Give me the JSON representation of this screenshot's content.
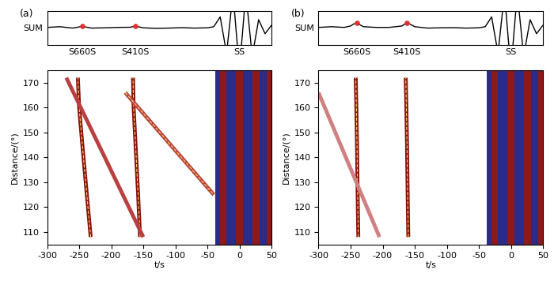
{
  "chart_data": [
    {
      "type": "seismic_section",
      "panel_label": "(a)",
      "sum_trace": {
        "ylabel": "SUM",
        "t": [
          -300,
          -280,
          -260,
          -250,
          -245,
          -240,
          -230,
          -210,
          -190,
          -170,
          -165,
          -162,
          -158,
          -150,
          -130,
          -110,
          -90,
          -70,
          -50,
          -40,
          -30,
          -20,
          -10,
          0,
          10,
          20,
          30,
          40,
          50
        ],
        "values": [
          0.05,
          0.1,
          0.0,
          0.08,
          0.15,
          0.08,
          0.0,
          0.02,
          0.05,
          0.06,
          0.12,
          0.15,
          0.1,
          0.02,
          -0.02,
          0.0,
          0.03,
          0.0,
          0.02,
          0.1,
          0.8,
          -1.8,
          2.5,
          -3,
          2.5,
          -2,
          0.6,
          -0.4,
          0.2
        ],
        "ylim": [
          -1.2,
          1.2
        ],
        "xticks": [
          {
            "value": -245,
            "label": "S660S"
          },
          {
            "value": -162,
            "label": "S410S"
          },
          {
            "value": 0,
            "label": "SS"
          }
        ],
        "picks": {
          "t": [
            -245,
            -162
          ],
          "values": [
            0.15,
            0.15
          ],
          "color": "#e03030"
        }
      },
      "xlabel": "t/s",
      "ylabel": "Distance/(°)",
      "xlim": [
        -300,
        50
      ],
      "xticks": [
        -300,
        -250,
        -200,
        -150,
        -100,
        -50,
        0,
        50
      ],
      "ylim": [
        105,
        175
      ],
      "yticks": [
        110,
        120,
        130,
        140,
        150,
        160,
        170
      ],
      "bands": [
        {
          "t": [
            -38,
            -30
          ],
          "color": "#2b2b8c"
        },
        {
          "t": [
            -30,
            -20
          ],
          "color": "#8b1a1a"
        },
        {
          "t": [
            -20,
            -5
          ],
          "color": "#2b2b8c"
        },
        {
          "t": [
            -5,
            5
          ],
          "color": "#8b1a1a"
        },
        {
          "t": [
            5,
            20
          ],
          "color": "#2b2b8c"
        },
        {
          "t": [
            20,
            32
          ],
          "color": "#8b1a1a"
        },
        {
          "t": [
            32,
            42
          ],
          "color": "#2b2b8c"
        },
        {
          "t": [
            42,
            50
          ],
          "color": "#8b1a1a"
        }
      ],
      "phases": [
        {
          "t": [
            -232,
            -238,
            -245,
            -250,
            -252
          ],
          "distance": [
            108,
            125,
            145,
            160,
            172
          ],
          "color": "#8b1010",
          "marker": "picked"
        },
        {
          "t": [
            -155,
            -158,
            -162,
            -165,
            -166
          ],
          "distance": [
            108,
            125,
            145,
            160,
            172
          ],
          "color": "#8b1010",
          "marker": "picked"
        },
        {
          "t": [
            -270,
            -150
          ],
          "distance": [
            172,
            108
          ],
          "color": "#b84040",
          "marker": "none"
        },
        {
          "t": [
            -178,
            -40
          ],
          "distance": [
            166,
            125
          ],
          "color": "#b84040",
          "marker": "picked"
        }
      ]
    },
    {
      "type": "seismic_section",
      "panel_label": "(b)",
      "sum_trace": {
        "ylabel": "SUM",
        "t": [
          -300,
          -280,
          -260,
          -250,
          -245,
          -240,
          -230,
          -210,
          -190,
          -170,
          -165,
          -162,
          -158,
          -150,
          -130,
          -110,
          -90,
          -70,
          -50,
          -40,
          -30,
          -20,
          -10,
          0,
          10,
          20,
          30,
          40,
          50
        ],
        "values": [
          0.05,
          0.1,
          0.05,
          0.15,
          0.3,
          0.35,
          0.1,
          0.05,
          0.05,
          0.15,
          0.3,
          0.35,
          0.3,
          0.1,
          0.0,
          0.02,
          0.03,
          0.0,
          0.02,
          0.1,
          0.8,
          -1.8,
          2.5,
          -3,
          2.5,
          -2,
          0.6,
          -0.4,
          0.2
        ],
        "ylim": [
          -1.2,
          1.2
        ],
        "xticks": [
          {
            "value": -240,
            "label": "S660S"
          },
          {
            "value": -162,
            "label": "S410S"
          },
          {
            "value": 0,
            "label": "SS"
          }
        ],
        "picks": {
          "t": [
            -240,
            -162
          ],
          "values": [
            0.35,
            0.35
          ],
          "color": "#e03030"
        }
      },
      "xlabel": "t/s",
      "ylabel": "Distance/(°)",
      "xlim": [
        -300,
        50
      ],
      "xticks": [
        -300,
        -250,
        -200,
        -150,
        -100,
        -50,
        0,
        50
      ],
      "ylim": [
        105,
        175
      ],
      "yticks": [
        110,
        120,
        130,
        140,
        150,
        160,
        170
      ],
      "bands": [
        {
          "t": [
            -38,
            -30
          ],
          "color": "#2b2b8c"
        },
        {
          "t": [
            -30,
            -20
          ],
          "color": "#8b1a1a"
        },
        {
          "t": [
            -20,
            -5
          ],
          "color": "#2b2b8c"
        },
        {
          "t": [
            -5,
            5
          ],
          "color": "#8b1a1a"
        },
        {
          "t": [
            5,
            20
          ],
          "color": "#2b2b8c"
        },
        {
          "t": [
            20,
            32
          ],
          "color": "#8b1a1a"
        },
        {
          "t": [
            32,
            42
          ],
          "color": "#2b2b8c"
        },
        {
          "t": [
            42,
            50
          ],
          "color": "#8b1a1a"
        }
      ],
      "phases": [
        {
          "t": [
            -238,
            -239,
            -240,
            -241,
            -242
          ],
          "distance": [
            108,
            125,
            145,
            160,
            172
          ],
          "color": "#8b1010",
          "marker": "picked"
        },
        {
          "t": [
            -160,
            -161,
            -162,
            -163,
            -164
          ],
          "distance": [
            108,
            125,
            145,
            160,
            172
          ],
          "color": "#8b1010",
          "marker": "picked"
        },
        {
          "t": [
            -300,
            -205
          ],
          "distance": [
            166,
            108
          ],
          "color": "#d08080",
          "marker": "none"
        }
      ]
    }
  ]
}
